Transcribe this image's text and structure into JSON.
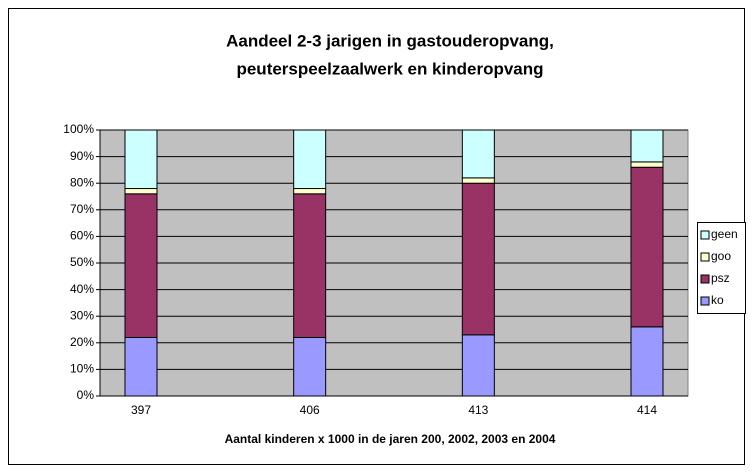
{
  "chart_data": {
    "type": "stacked_bar",
    "title": [
      "Aandeel 2-3 jarigen in gastouderopvang,",
      "peuterspeelzaalwerk en kinderopvang"
    ],
    "x_label": "Aantal kinderen x 1000 in de jaren 200, 2002, 2003 en 2004",
    "categories": [
      "397",
      "406",
      "413",
      "414"
    ],
    "series": [
      {
        "name": "ko",
        "color": "#9999ff",
        "values": [
          22,
          22,
          23,
          26
        ]
      },
      {
        "name": "psz",
        "color": "#993366",
        "values": [
          54,
          54,
          57,
          60
        ]
      },
      {
        "name": "goo",
        "color": "#ffffcc",
        "values": [
          2,
          2,
          2,
          2
        ]
      },
      {
        "name": "geen",
        "color": "#ccffff",
        "values": [
          22,
          22,
          18,
          12
        ]
      }
    ],
    "ylim": [
      0,
      100
    ],
    "yticks": [
      {
        "value": 0,
        "label": "0%"
      },
      {
        "value": 10,
        "label": "10%"
      },
      {
        "value": 20,
        "label": "20%"
      },
      {
        "value": 30,
        "label": "30%"
      },
      {
        "value": 40,
        "label": "40%"
      },
      {
        "value": 50,
        "label": "50%"
      },
      {
        "value": 60,
        "label": "60%"
      },
      {
        "value": 70,
        "label": "70%"
      },
      {
        "value": 80,
        "label": "80%"
      },
      {
        "value": 90,
        "label": "90%"
      },
      {
        "value": 100,
        "label": "100%"
      }
    ],
    "grid": true,
    "legend": "right"
  }
}
